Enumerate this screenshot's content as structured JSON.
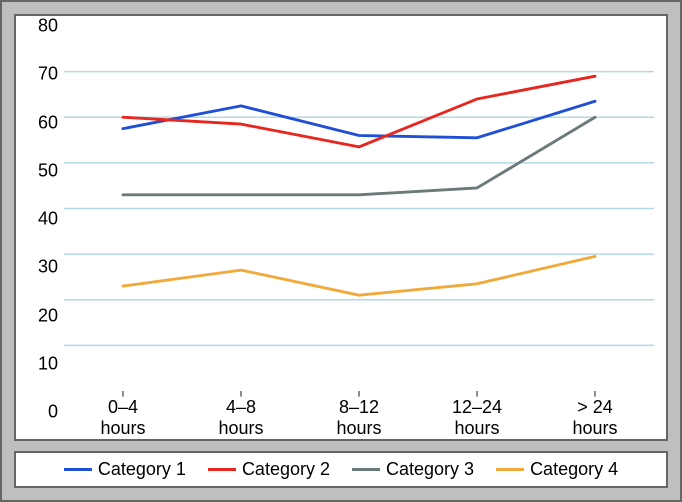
{
  "chart": {
    "type": "line",
    "background_color": "#bfbfbf",
    "plot_background_color": "#ffffff",
    "frame_border_color": "#666666",
    "grid_color": "#b3d9e6",
    "axis_line_color": "#666666",
    "ylim": [
      0,
      80
    ],
    "ytick_step": 10,
    "yticks": [
      0,
      10,
      20,
      30,
      40,
      50,
      60,
      70,
      80
    ],
    "x_categories": [
      "0–4\nhours",
      "4–8\nhours",
      "8–12\nhours",
      "12–24\nhours",
      "> 24\nhours"
    ],
    "tick_font_size": 18,
    "line_width": 3,
    "series": [
      {
        "name": "Category 1",
        "color": "#1f4fd6",
        "values": [
          57.5,
          62.5,
          56,
          55.5,
          63.5
        ]
      },
      {
        "name": "Category 2",
        "color": "#e6261f",
        "values": [
          60,
          58.5,
          53.5,
          64,
          69
        ]
      },
      {
        "name": "Category 3",
        "color": "#6b7a7a",
        "values": [
          43,
          43,
          43,
          44.5,
          60
        ]
      },
      {
        "name": "Category 4",
        "color": "#f2a93b",
        "values": [
          23,
          26.5,
          21,
          23.5,
          29.5
        ]
      }
    ],
    "legend": {
      "position": "bottom",
      "font_size": 18,
      "swatch_width": 28,
      "swatch_line_width": 3
    }
  }
}
